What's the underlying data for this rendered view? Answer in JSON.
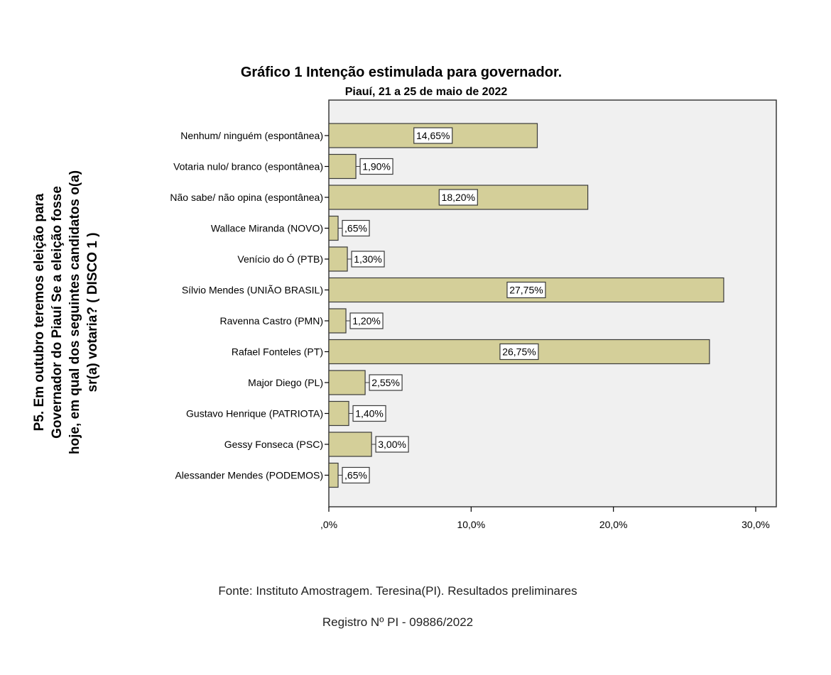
{
  "chart_data": {
    "type": "bar",
    "orientation": "horizontal",
    "title": "Gráfico 1 Intenção estimulada para governador.",
    "subtitle": "Piauí, 21 a 25 de maio de 2022",
    "ylabel_lines": [
      "P5. Em outubro teremos eleição para",
      "Governador do Piauí   Se a eleição fosse",
      "hoje, em qual dos seguintes candidatos o(a)",
      "sr(a) votaria? (   DISCO  1   )"
    ],
    "xlabel": "",
    "categories": [
      "Nenhum/ ninguém (espontânea)",
      "Votaria nulo/ branco (espontânea)",
      "Não sabe/ não opina (espontânea)",
      "Wallace Miranda (NOVO)",
      "Venício do Ó (PTB)",
      "Sílvio Mendes (UNIÃO BRASIL)",
      "Ravenna Castro (PMN)",
      "Rafael Fonteles (PT)",
      "Major Diego (PL)",
      "Gustavo Henrique (PATRIOTA)",
      "Gessy Fonseca (PSC)",
      "Alessander Mendes (PODEMOS)"
    ],
    "values": [
      14.65,
      1.9,
      18.2,
      0.65,
      1.3,
      27.75,
      1.2,
      26.75,
      2.55,
      1.4,
      3.0,
      0.65
    ],
    "data_labels": [
      "14,65%",
      "1,90%",
      "18,20%",
      ",65%",
      "1,30%",
      "27,75%",
      "1,20%",
      "26,75%",
      "2,55%",
      "1,40%",
      "3,00%",
      ",65%"
    ],
    "xlim": [
      0,
      31.5
    ],
    "xticks": [
      0,
      10,
      20,
      30
    ],
    "xtick_labels": [
      ",0%",
      "10,0%",
      "20,0%",
      "30,0%"
    ],
    "grid": false,
    "colors": {
      "bar": "#d4cf99",
      "plot_bg": "#f0f0f0",
      "edge": "#3a3a3a"
    }
  },
  "footer": {
    "source": "Fonte: Instituto Amostragem. Teresina(PI). Resultados preliminares",
    "registry": "Registro Nº PI - 09886/2022"
  }
}
